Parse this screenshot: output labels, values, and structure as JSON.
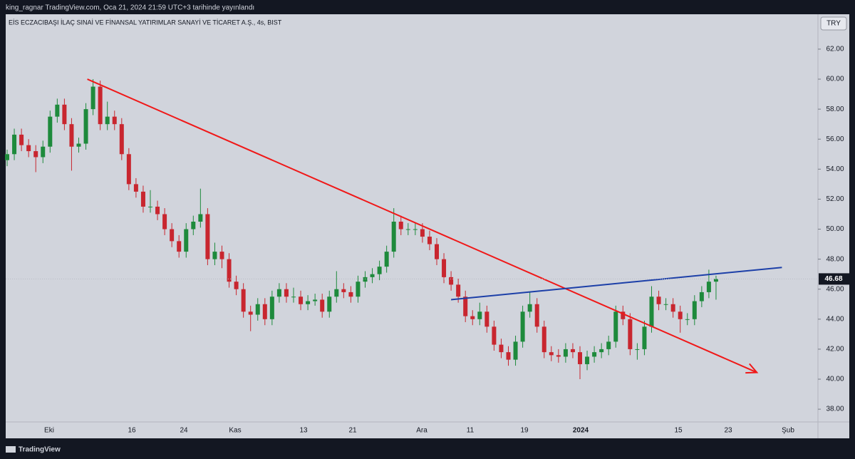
{
  "header": {
    "text": "king_ragnar TradingView.com, Oca 21, 2024 21:59 UTC+3 tarihinde yayınlandı"
  },
  "footer": {
    "brand": "TradingView"
  },
  "chart_data": {
    "type": "candlestick",
    "title": "EİS ECZACIBAŞI İLAÇ SINAİ VE FİNANSAL YATIRIMLAR SANAYİ VE TİCARET A.Ş., 4s, BIST",
    "currency": "TRY",
    "up_color": "#1e8a3c",
    "down_color": "#c8262f",
    "grid": false,
    "x_labels": [
      "Eki",
      "16",
      "24",
      "Kas",
      "13",
      "21",
      "Ara",
      "11",
      "19",
      "2024",
      "15",
      "23",
      "Şub"
    ],
    "open": [
      54.6,
      55.0,
      56.3,
      55.6,
      55.2,
      54.8,
      55.5,
      57.5,
      58.3,
      57.0,
      55.5,
      55.7,
      58.0,
      59.5,
      57.0,
      57.5,
      57.0,
      55.0,
      53.0,
      52.5,
      51.5,
      51.5,
      51.0,
      50.0,
      49.2,
      48.5,
      50.0,
      50.5,
      51.0,
      48.0,
      48.5,
      48.0,
      46.5,
      46.0,
      44.5,
      44.3,
      45.0,
      44.0,
      45.5,
      46.0,
      45.5,
      45.5,
      45.0,
      45.2,
      45.3,
      44.5,
      45.5,
      46.0,
      45.8,
      45.5,
      46.5,
      46.8,
      47.0,
      47.5,
      48.5,
      50.5,
      50.0,
      50.0,
      50.0,
      49.5,
      49.0,
      48.0,
      46.8,
      46.3,
      45.5,
      44.2,
      44.0,
      44.5,
      43.5,
      42.3,
      41.8,
      41.3,
      42.5,
      44.5,
      45.0,
      43.5,
      41.8,
      41.6,
      41.5,
      42.0,
      41.8,
      41.0,
      41.5,
      41.8,
      42.0,
      42.5,
      44.5,
      44.0,
      42.0,
      42.0,
      43.5,
      45.5,
      45.0,
      45.0,
      44.5,
      44.0,
      44.0,
      45.2,
      45.8,
      46.5
    ],
    "high": [
      55.3,
      56.7,
      56.7,
      56.0,
      55.6,
      55.9,
      57.9,
      58.7,
      58.7,
      57.4,
      56.1,
      58.4,
      60.0,
      59.9,
      58.5,
      57.9,
      57.4,
      55.4,
      53.4,
      52.9,
      52.6,
      51.9,
      51.4,
      50.4,
      49.6,
      50.4,
      50.9,
      52.7,
      51.4,
      49.1,
      48.9,
      48.4,
      46.9,
      46.4,
      44.9,
      45.4,
      45.4,
      45.9,
      46.4,
      46.4,
      46.1,
      45.9,
      45.6,
      45.7,
      45.7,
      45.9,
      47.2,
      46.4,
      46.2,
      46.9,
      47.2,
      47.4,
      47.9,
      48.9,
      51.4,
      50.9,
      50.4,
      50.4,
      50.4,
      49.9,
      49.4,
      48.4,
      47.2,
      46.7,
      45.9,
      44.6,
      45.1,
      44.9,
      43.9,
      42.7,
      42.2,
      42.9,
      44.9,
      45.8,
      45.4,
      43.9,
      42.2,
      42.0,
      42.4,
      42.4,
      42.2,
      41.9,
      42.2,
      42.4,
      42.9,
      44.9,
      44.9,
      44.4,
      42.4,
      43.9,
      46.2,
      45.9,
      45.4,
      45.4,
      44.9,
      44.4,
      45.6,
      46.2,
      47.3,
      46.9
    ],
    "low": [
      54.2,
      54.6,
      55.2,
      54.8,
      53.8,
      54.4,
      55.1,
      57.1,
      56.6,
      53.9,
      55.1,
      55.3,
      57.6,
      56.6,
      56.6,
      56.6,
      54.6,
      52.6,
      52.1,
      51.1,
      51.1,
      50.6,
      49.6,
      48.8,
      48.1,
      48.1,
      49.6,
      50.1,
      47.6,
      47.6,
      47.4,
      46.1,
      45.6,
      44.1,
      43.2,
      43.9,
      43.6,
      43.6,
      45.1,
      45.1,
      45.1,
      44.6,
      44.6,
      44.9,
      44.1,
      44.1,
      45.1,
      45.4,
      45.1,
      45.1,
      46.1,
      46.4,
      46.6,
      47.1,
      48.1,
      49.6,
      49.6,
      49.6,
      49.1,
      48.6,
      47.6,
      46.4,
      45.9,
      45.1,
      43.8,
      43.6,
      43.6,
      43.1,
      41.9,
      41.4,
      40.9,
      40.9,
      42.1,
      44.1,
      43.1,
      41.4,
      41.2,
      41.1,
      41.1,
      41.4,
      40.0,
      40.6,
      41.1,
      41.4,
      41.6,
      42.1,
      43.6,
      41.6,
      41.3,
      41.6,
      43.1,
      44.6,
      44.6,
      44.1,
      43.1,
      43.6,
      43.6,
      44.8,
      45.4,
      45.3
    ],
    "close": [
      55.0,
      56.3,
      55.6,
      55.2,
      54.8,
      55.5,
      57.5,
      58.3,
      57.0,
      55.5,
      55.7,
      58.0,
      59.5,
      57.0,
      57.5,
      57.0,
      55.0,
      53.0,
      52.5,
      51.5,
      51.5,
      51.0,
      50.0,
      49.2,
      48.5,
      50.0,
      50.5,
      51.0,
      48.0,
      48.5,
      48.0,
      46.5,
      46.0,
      44.5,
      44.3,
      45.0,
      44.0,
      45.5,
      46.0,
      45.5,
      45.5,
      45.0,
      45.2,
      45.3,
      44.5,
      45.5,
      46.0,
      45.8,
      45.5,
      46.5,
      46.8,
      47.0,
      47.5,
      48.5,
      50.5,
      50.0,
      50.0,
      50.0,
      49.5,
      49.0,
      48.0,
      46.8,
      46.3,
      45.5,
      44.2,
      44.0,
      44.5,
      43.5,
      42.3,
      41.8,
      41.3,
      42.5,
      44.5,
      45.0,
      43.5,
      41.8,
      41.6,
      41.5,
      42.0,
      41.8,
      41.0,
      41.5,
      41.8,
      42.0,
      42.5,
      44.5,
      44.0,
      42.0,
      42.0,
      43.5,
      45.5,
      45.0,
      45.0,
      44.5,
      44.0,
      44.0,
      45.2,
      45.8,
      46.5,
      46.68
    ],
    "last_price": {
      "value": 46.68,
      "label": "46.68"
    },
    "ylim": [
      37.15,
      64.23
    ],
    "yticks": [
      {
        "value": 38,
        "label": "38.00"
      },
      {
        "value": 40,
        "label": "40.00"
      },
      {
        "value": 42,
        "label": "42.00"
      },
      {
        "value": 44,
        "label": "44.00"
      },
      {
        "value": 46,
        "label": "46.00"
      },
      {
        "value": 48,
        "label": "48.00"
      },
      {
        "value": 50,
        "label": "50.00"
      },
      {
        "value": 52,
        "label": "52.00"
      },
      {
        "value": 54,
        "label": "54.00"
      },
      {
        "value": 56,
        "label": "56.00"
      },
      {
        "value": 58,
        "label": "58.00"
      },
      {
        "value": 60,
        "label": "60.00"
      },
      {
        "value": 62,
        "label": "62.00"
      }
    ],
    "trendlines": [
      {
        "color": "#f01818",
        "x": [
          11.2,
          104.7
        ],
        "y": [
          60.0,
          40.45
        ],
        "arrow": true
      },
      {
        "color": "#1c3fa8",
        "x": [
          62.0,
          108.2
        ],
        "y": [
          45.3,
          47.45
        ],
        "arrow": false
      }
    ]
  }
}
